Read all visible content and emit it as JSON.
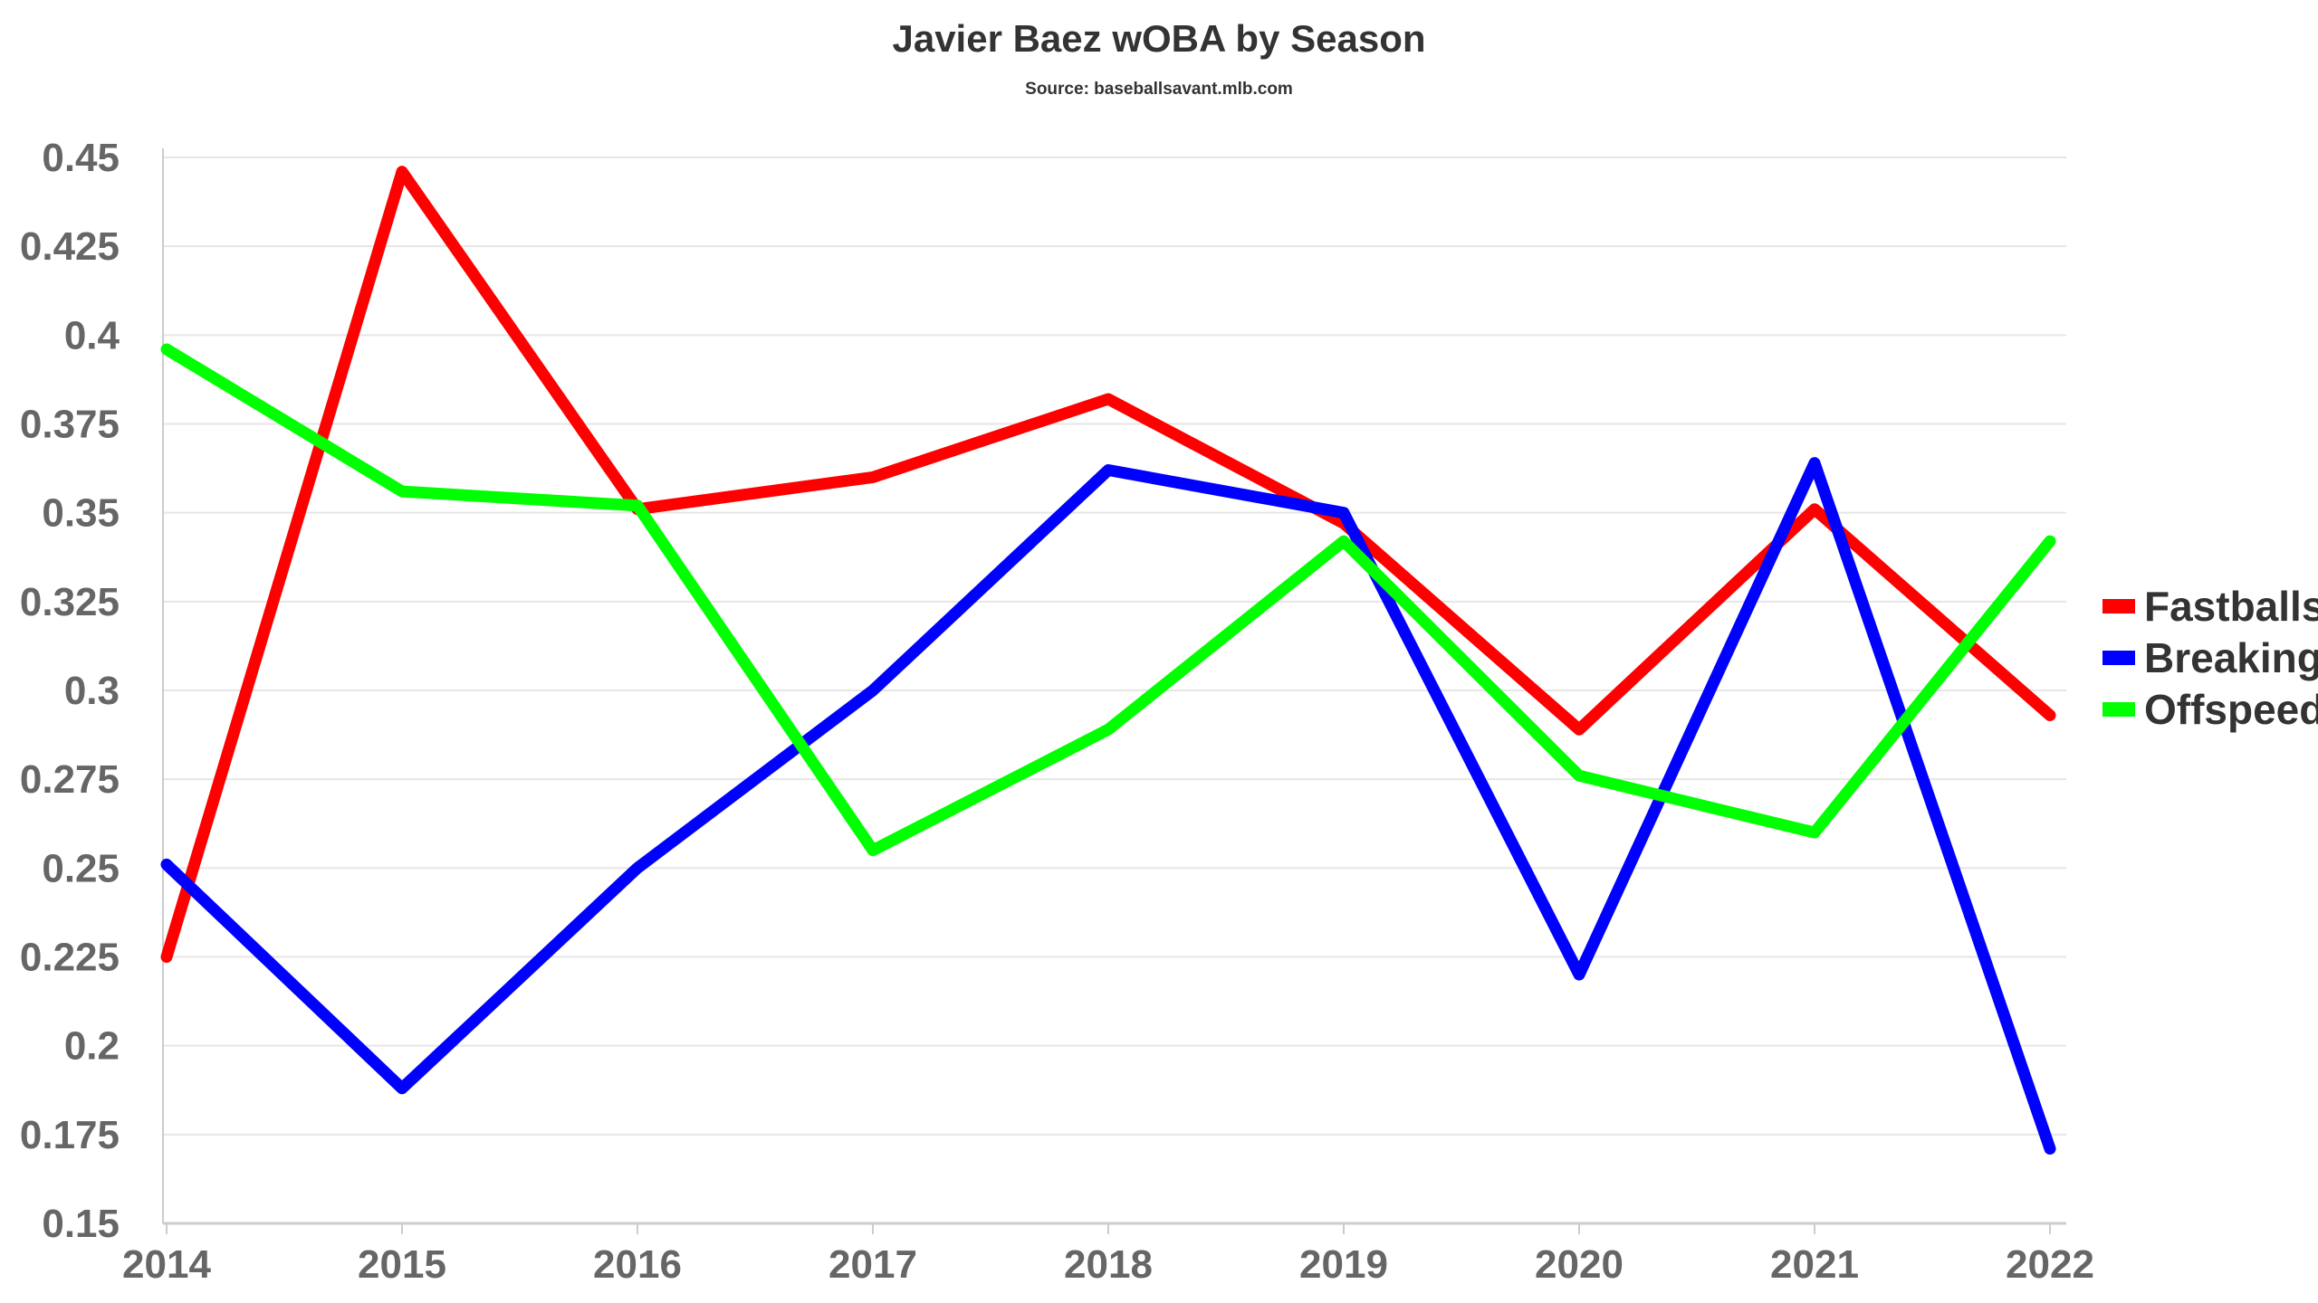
{
  "chart_data": {
    "type": "line",
    "title": "Javier Baez wOBA by Season",
    "subtitle": "Source: baseballsavant.mlb.com",
    "xlabel": "",
    "ylabel": "",
    "x": [
      "2014",
      "2015",
      "2016",
      "2017",
      "2018",
      "2019",
      "2020",
      "2021",
      "2022"
    ],
    "ylim": [
      0.15,
      0.45
    ],
    "yticks": [
      "0.15",
      "0.175",
      "0.2",
      "0.225",
      "0.25",
      "0.275",
      "0.3",
      "0.325",
      "0.35",
      "0.375",
      "0.4",
      "0.425",
      "0.45"
    ],
    "grid": true,
    "legend_position": "right",
    "series": [
      {
        "name": "Fastballs",
        "color": "#ff0000",
        "values": [
          0.225,
          0.446,
          0.351,
          0.36,
          0.382,
          0.347,
          0.289,
          0.351,
          0.293
        ]
      },
      {
        "name": "Breaking",
        "color": "#0000ff",
        "values": [
          0.251,
          0.188,
          0.25,
          0.3,
          0.362,
          0.35,
          0.22,
          0.364,
          0.171
        ]
      },
      {
        "name": "Offspeed",
        "color": "#00ff00",
        "values": [
          0.396,
          0.356,
          0.352,
          0.255,
          0.289,
          0.342,
          0.276,
          0.26,
          0.342
        ]
      }
    ]
  }
}
